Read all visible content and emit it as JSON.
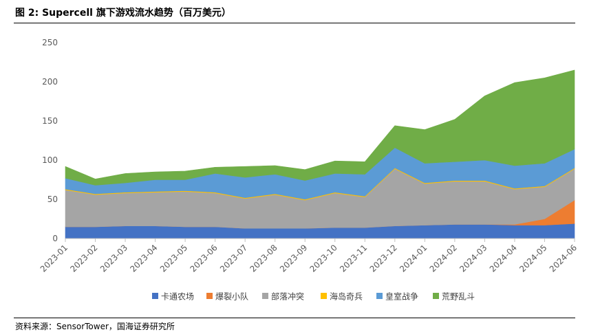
{
  "figure": {
    "title": "图 2: Supercell 旗下游戏流水趋势（百万美元）",
    "source": "资料来源：SensorTower，国海证券研究所"
  },
  "chart_data": {
    "type": "area",
    "stacked": true,
    "title": "",
    "xlabel": "",
    "ylabel": "",
    "ylim": [
      0,
      250
    ],
    "yticks": [
      0,
      50,
      100,
      150,
      200,
      250
    ],
    "grid": false,
    "legend_position": "bottom",
    "categories": [
      "2023-01",
      "2023-02",
      "2023-03",
      "2023-04",
      "2023-05",
      "2023-06",
      "2023-07",
      "2023-08",
      "2023-09",
      "2023-10",
      "2023-11",
      "2023-12",
      "2024-01",
      "2024-02",
      "2024-03",
      "2024-04",
      "2024-05",
      "2024-06"
    ],
    "series": [
      {
        "name": "卡通农场",
        "color": "#4472C4",
        "values": [
          15,
          15,
          16,
          16,
          15,
          15,
          13,
          13,
          13,
          14,
          14,
          16,
          17,
          18,
          18,
          17,
          17,
          19
        ]
      },
      {
        "name": "爆裂小队",
        "color": "#ED7D31",
        "values": [
          0,
          0,
          0,
          0,
          0,
          0,
          0,
          0,
          0,
          0,
          0,
          0,
          0,
          0,
          0,
          1,
          8,
          30
        ]
      },
      {
        "name": "部落冲突",
        "color": "#A5A5A5",
        "values": [
          47,
          41,
          42,
          43,
          45,
          43,
          38,
          43,
          36,
          44,
          39,
          73,
          53,
          55,
          55,
          45,
          41,
          40
        ]
      },
      {
        "name": "海岛奇兵",
        "color": "#FFC000",
        "values": [
          1,
          1,
          1,
          1,
          1,
          1,
          1,
          1,
          1,
          1,
          1,
          1,
          1,
          1,
          1,
          1,
          1,
          1
        ]
      },
      {
        "name": "皇室战争",
        "color": "#5B9BD5",
        "values": [
          14,
          11,
          12,
          15,
          14,
          24,
          26,
          25,
          24,
          24,
          28,
          26,
          25,
          24,
          26,
          29,
          29,
          24
        ]
      },
      {
        "name": "荒野乱斗",
        "color": "#70AD47",
        "values": [
          15,
          8,
          12,
          10,
          11,
          8,
          14,
          11,
          14,
          16,
          16,
          28,
          43,
          54,
          82,
          106,
          109,
          101
        ]
      }
    ]
  }
}
